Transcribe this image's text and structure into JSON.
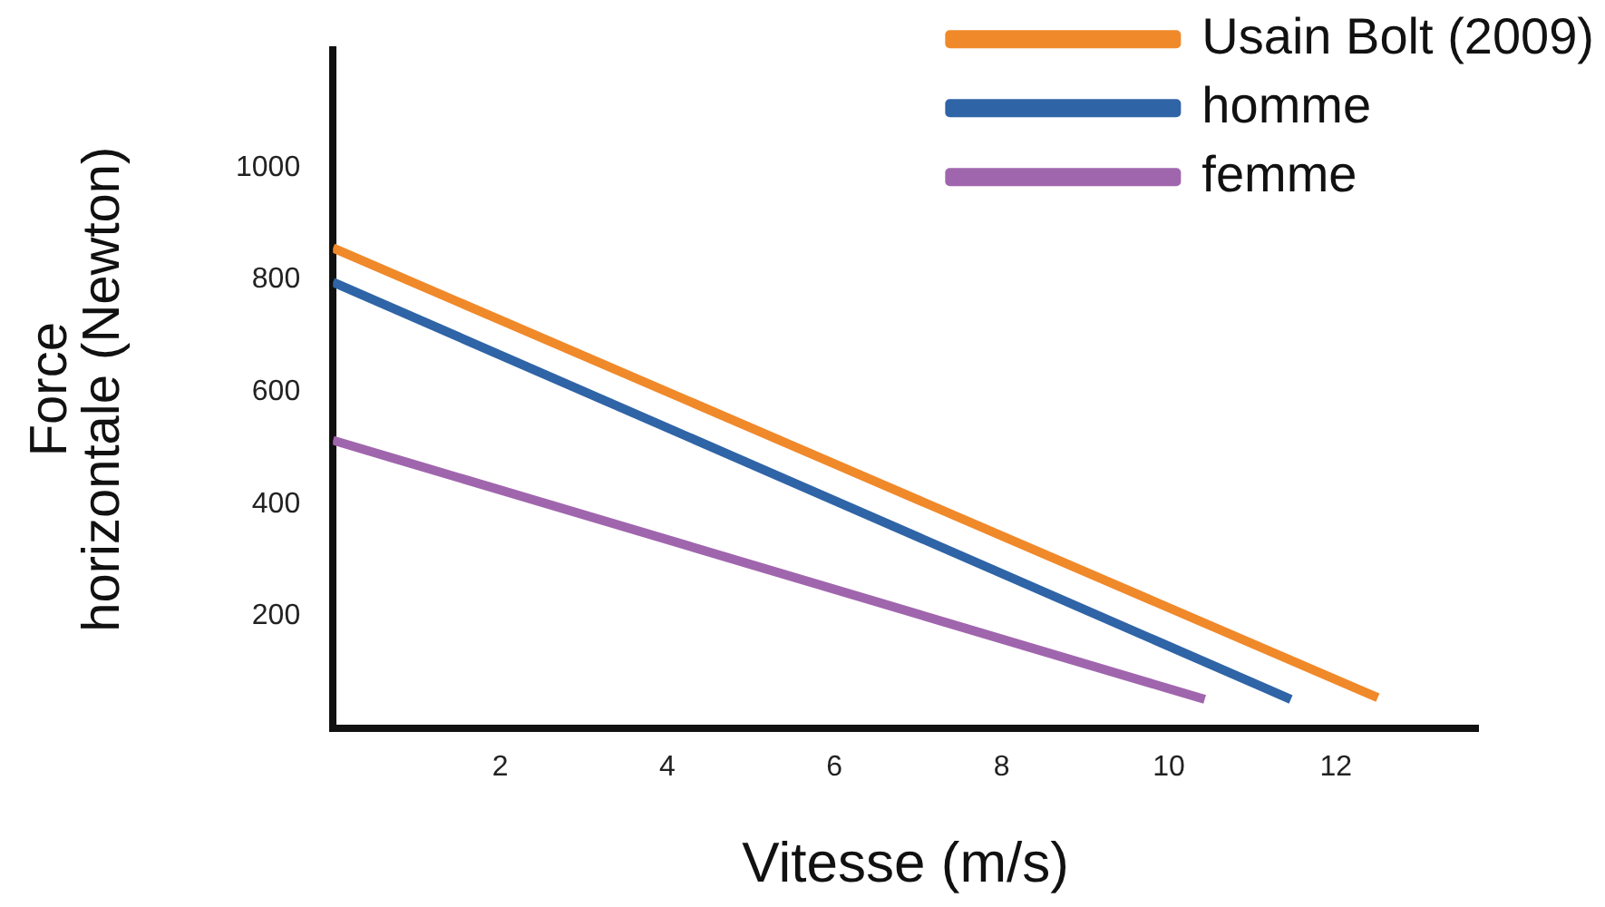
{
  "chart_data": {
    "type": "line",
    "xlabel": "Vitesse (m/s)",
    "ylabel": "Force horizontale (Newton)",
    "xlim": [
      0,
      13.7
    ],
    "xticks": [
      2,
      4,
      6,
      8,
      10,
      12
    ],
    "ylim": [
      0,
      1210
    ],
    "yticks": [
      200,
      400,
      600,
      800,
      1000
    ],
    "grid": false,
    "legend": "top right",
    "marker": "none",
    "line_style": "solid",
    "series": [
      {
        "name": "Usain Bolt (2009)",
        "color": "#f0892a",
        "x": [
          0,
          12.5
        ],
        "values": [
          857,
          55
        ]
      },
      {
        "name": "homme",
        "color": "#2f64a6",
        "x": [
          0,
          11.46
        ],
        "values": [
          796,
          52
        ]
      },
      {
        "name": "femme",
        "color": "#a066ad",
        "x": [
          0,
          10.43
        ],
        "values": [
          514,
          52
        ]
      }
    ]
  }
}
